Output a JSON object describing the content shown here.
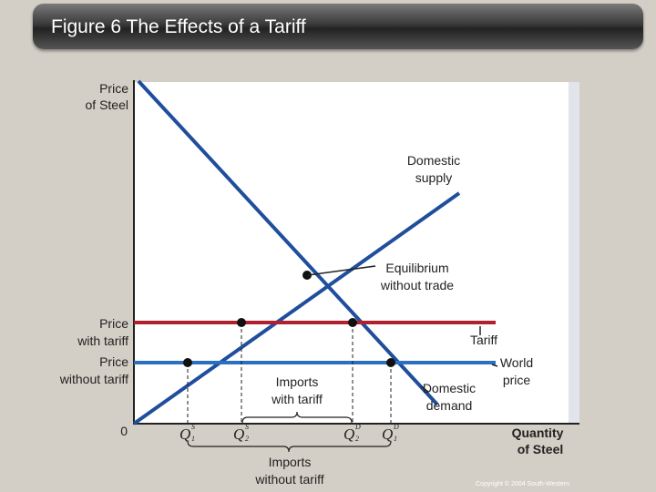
{
  "slide": {
    "title": "Figure 6 The Effects of a Tariff",
    "copyright": "Copyright © 2004  South-Western"
  },
  "axes": {
    "y_label_line1": "Price",
    "y_label_line2": "of Steel",
    "x_label_line1": "Quantity",
    "x_label_line2": "of Steel",
    "origin": "0"
  },
  "labels": {
    "supply_line1": "Domestic",
    "supply_line2": "supply",
    "demand_line1": "Domestic",
    "demand_line2": "demand",
    "equilibrium_line1": "Equilibrium",
    "equilibrium_line2": "without trade",
    "price_tariff_line1": "Price",
    "price_tariff_line2": "with tariff",
    "price_world_line1": "Price",
    "price_world_line2": "without tariff",
    "tariff": "Tariff",
    "world_price_line1": "World",
    "world_price_line2": "price",
    "imports_tariff_line1": "Imports",
    "imports_tariff_line2": "with tariff",
    "imports_no_tariff_line1": "Imports",
    "imports_no_tariff_line2": "without tariff"
  },
  "quantities": {
    "q1s": "Q",
    "q1s_sup": "S",
    "q1s_sub": "1",
    "q2s": "Q",
    "q2s_sup": "S",
    "q2s_sub": "2",
    "q2d": "Q",
    "q2d_sup": "D",
    "q2d_sub": "2",
    "q1d": "Q",
    "q1d_sup": "D",
    "q1d_sub": "1"
  },
  "colors": {
    "supply_demand": "#1f4e9c",
    "world_price": "#2a6fc0",
    "tariff_price": "#b0202e"
  }
}
